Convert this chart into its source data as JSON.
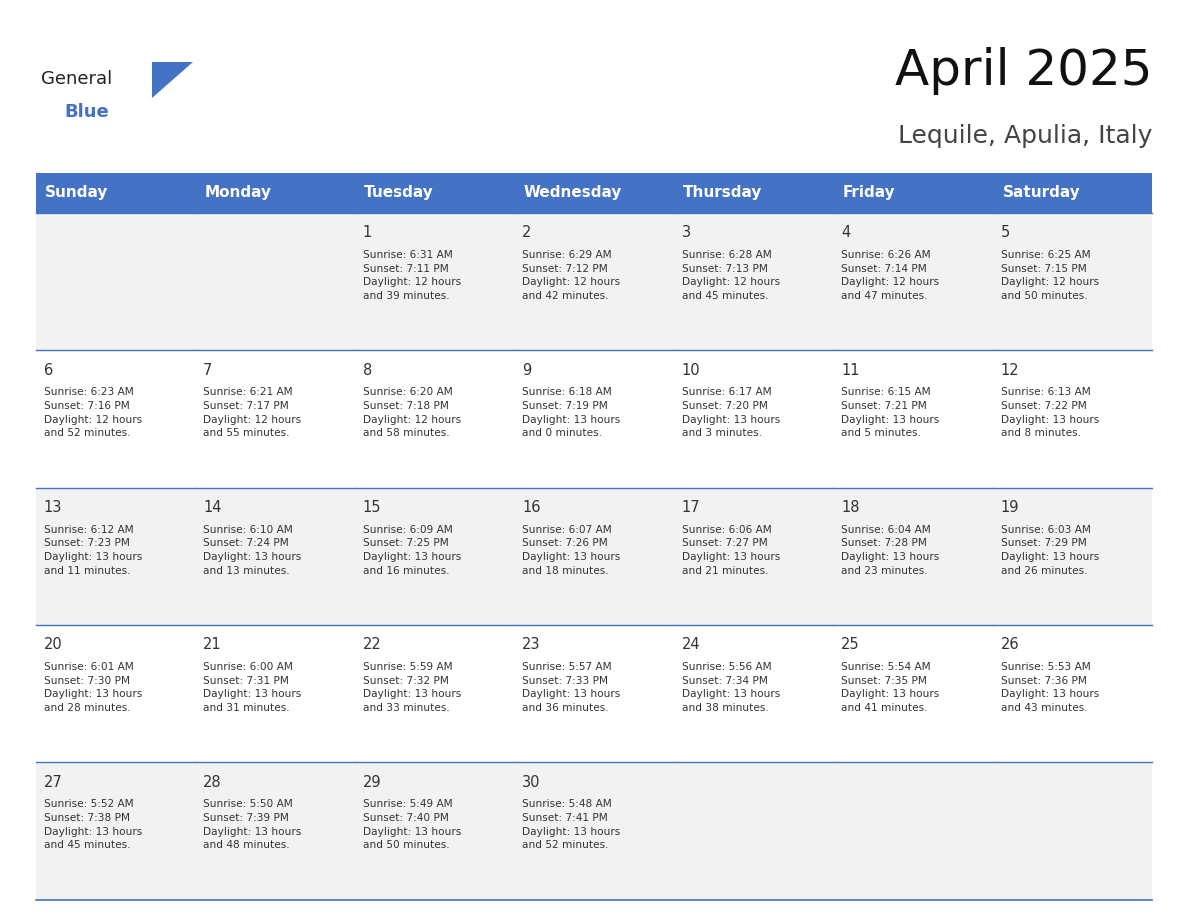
{
  "title": "April 2025",
  "subtitle": "Lequile, Apulia, Italy",
  "header_bg": "#4472C4",
  "header_text": "#FFFFFF",
  "header_font_size": 11,
  "day_names": [
    "Sunday",
    "Monday",
    "Tuesday",
    "Wednesday",
    "Thursday",
    "Friday",
    "Saturday"
  ],
  "title_font_size": 36,
  "subtitle_font_size": 18,
  "cell_text_color": "#333333",
  "day_num_color": "#333333",
  "grid_color": "#4472C4",
  "alt_row_bg": "#F2F2F2",
  "white_row_bg": "#FFFFFF",
  "calendar": [
    [
      {
        "day": "",
        "info": ""
      },
      {
        "day": "",
        "info": ""
      },
      {
        "day": "1",
        "info": "Sunrise: 6:31 AM\nSunset: 7:11 PM\nDaylight: 12 hours\nand 39 minutes."
      },
      {
        "day": "2",
        "info": "Sunrise: 6:29 AM\nSunset: 7:12 PM\nDaylight: 12 hours\nand 42 minutes."
      },
      {
        "day": "3",
        "info": "Sunrise: 6:28 AM\nSunset: 7:13 PM\nDaylight: 12 hours\nand 45 minutes."
      },
      {
        "day": "4",
        "info": "Sunrise: 6:26 AM\nSunset: 7:14 PM\nDaylight: 12 hours\nand 47 minutes."
      },
      {
        "day": "5",
        "info": "Sunrise: 6:25 AM\nSunset: 7:15 PM\nDaylight: 12 hours\nand 50 minutes."
      }
    ],
    [
      {
        "day": "6",
        "info": "Sunrise: 6:23 AM\nSunset: 7:16 PM\nDaylight: 12 hours\nand 52 minutes."
      },
      {
        "day": "7",
        "info": "Sunrise: 6:21 AM\nSunset: 7:17 PM\nDaylight: 12 hours\nand 55 minutes."
      },
      {
        "day": "8",
        "info": "Sunrise: 6:20 AM\nSunset: 7:18 PM\nDaylight: 12 hours\nand 58 minutes."
      },
      {
        "day": "9",
        "info": "Sunrise: 6:18 AM\nSunset: 7:19 PM\nDaylight: 13 hours\nand 0 minutes."
      },
      {
        "day": "10",
        "info": "Sunrise: 6:17 AM\nSunset: 7:20 PM\nDaylight: 13 hours\nand 3 minutes."
      },
      {
        "day": "11",
        "info": "Sunrise: 6:15 AM\nSunset: 7:21 PM\nDaylight: 13 hours\nand 5 minutes."
      },
      {
        "day": "12",
        "info": "Sunrise: 6:13 AM\nSunset: 7:22 PM\nDaylight: 13 hours\nand 8 minutes."
      }
    ],
    [
      {
        "day": "13",
        "info": "Sunrise: 6:12 AM\nSunset: 7:23 PM\nDaylight: 13 hours\nand 11 minutes."
      },
      {
        "day": "14",
        "info": "Sunrise: 6:10 AM\nSunset: 7:24 PM\nDaylight: 13 hours\nand 13 minutes."
      },
      {
        "day": "15",
        "info": "Sunrise: 6:09 AM\nSunset: 7:25 PM\nDaylight: 13 hours\nand 16 minutes."
      },
      {
        "day": "16",
        "info": "Sunrise: 6:07 AM\nSunset: 7:26 PM\nDaylight: 13 hours\nand 18 minutes."
      },
      {
        "day": "17",
        "info": "Sunrise: 6:06 AM\nSunset: 7:27 PM\nDaylight: 13 hours\nand 21 minutes."
      },
      {
        "day": "18",
        "info": "Sunrise: 6:04 AM\nSunset: 7:28 PM\nDaylight: 13 hours\nand 23 minutes."
      },
      {
        "day": "19",
        "info": "Sunrise: 6:03 AM\nSunset: 7:29 PM\nDaylight: 13 hours\nand 26 minutes."
      }
    ],
    [
      {
        "day": "20",
        "info": "Sunrise: 6:01 AM\nSunset: 7:30 PM\nDaylight: 13 hours\nand 28 minutes."
      },
      {
        "day": "21",
        "info": "Sunrise: 6:00 AM\nSunset: 7:31 PM\nDaylight: 13 hours\nand 31 minutes."
      },
      {
        "day": "22",
        "info": "Sunrise: 5:59 AM\nSunset: 7:32 PM\nDaylight: 13 hours\nand 33 minutes."
      },
      {
        "day": "23",
        "info": "Sunrise: 5:57 AM\nSunset: 7:33 PM\nDaylight: 13 hours\nand 36 minutes."
      },
      {
        "day": "24",
        "info": "Sunrise: 5:56 AM\nSunset: 7:34 PM\nDaylight: 13 hours\nand 38 minutes."
      },
      {
        "day": "25",
        "info": "Sunrise: 5:54 AM\nSunset: 7:35 PM\nDaylight: 13 hours\nand 41 minutes."
      },
      {
        "day": "26",
        "info": "Sunrise: 5:53 AM\nSunset: 7:36 PM\nDaylight: 13 hours\nand 43 minutes."
      }
    ],
    [
      {
        "day": "27",
        "info": "Sunrise: 5:52 AM\nSunset: 7:38 PM\nDaylight: 13 hours\nand 45 minutes."
      },
      {
        "day": "28",
        "info": "Sunrise: 5:50 AM\nSunset: 7:39 PM\nDaylight: 13 hours\nand 48 minutes."
      },
      {
        "day": "29",
        "info": "Sunrise: 5:49 AM\nSunset: 7:40 PM\nDaylight: 13 hours\nand 50 minutes."
      },
      {
        "day": "30",
        "info": "Sunrise: 5:48 AM\nSunset: 7:41 PM\nDaylight: 13 hours\nand 52 minutes."
      },
      {
        "day": "",
        "info": ""
      },
      {
        "day": "",
        "info": ""
      },
      {
        "day": "",
        "info": ""
      }
    ]
  ]
}
